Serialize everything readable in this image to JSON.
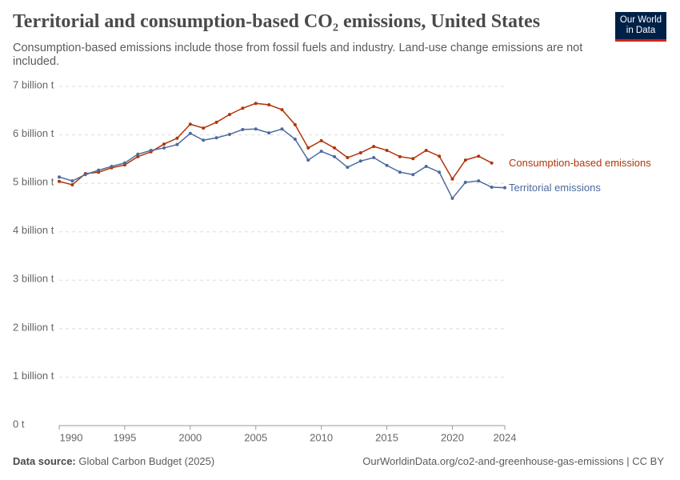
{
  "logo": {
    "line1": "Our World",
    "line2": "in Data"
  },
  "chart_data": {
    "type": "line",
    "title": "Territorial and consumption-based CO₂ emissions, United States",
    "subtitle": "Consumption-based emissions include those from fossil fuels and industry. Land-use change emissions are not included.",
    "x": [
      1990,
      1991,
      1992,
      1993,
      1994,
      1995,
      1996,
      1997,
      1998,
      1999,
      2000,
      2001,
      2002,
      2003,
      2004,
      2005,
      2006,
      2007,
      2008,
      2009,
      2010,
      2011,
      2012,
      2013,
      2014,
      2015,
      2016,
      2017,
      2018,
      2019,
      2020,
      2021,
      2022,
      2023,
      2024
    ],
    "series": [
      {
        "name": "Consumption-based emissions",
        "color": "#b13507",
        "values": [
          5.04,
          4.97,
          5.2,
          5.23,
          5.32,
          5.38,
          5.55,
          5.65,
          5.81,
          5.93,
          6.22,
          6.14,
          6.26,
          6.42,
          6.55,
          6.65,
          6.62,
          6.52,
          6.21,
          5.73,
          5.88,
          5.73,
          5.53,
          5.63,
          5.76,
          5.68,
          5.55,
          5.51,
          5.68,
          5.56,
          5.09,
          5.48,
          5.56,
          5.42,
          null
        ]
      },
      {
        "name": "Territorial emissions",
        "color": "#4c6a9c",
        "values": [
          5.13,
          5.05,
          5.18,
          5.27,
          5.35,
          5.42,
          5.6,
          5.68,
          5.73,
          5.8,
          6.03,
          5.89,
          5.94,
          6.01,
          6.11,
          6.12,
          6.04,
          6.12,
          5.91,
          5.48,
          5.66,
          5.55,
          5.33,
          5.46,
          5.53,
          5.37,
          5.23,
          5.18,
          5.35,
          5.23,
          4.69,
          5.02,
          5.05,
          4.92,
          4.91
        ]
      }
    ],
    "xlim": [
      1990,
      2024
    ],
    "xticks": [
      1990,
      1995,
      2000,
      2005,
      2010,
      2015,
      2020,
      2024
    ],
    "ylim": [
      0,
      7
    ],
    "yticks": [
      {
        "value": 0,
        "label": "0 t"
      },
      {
        "value": 1,
        "label": "1 billion t"
      },
      {
        "value": 2,
        "label": "2 billion t"
      },
      {
        "value": 3,
        "label": "3 billion t"
      },
      {
        "value": 4,
        "label": "4 billion t"
      },
      {
        "value": 5,
        "label": "5 billion t"
      },
      {
        "value": 6,
        "label": "6 billion t"
      },
      {
        "value": 7,
        "label": "7 billion t"
      }
    ],
    "grid": true,
    "source_label": "Data source:",
    "source": "Global Carbon Budget (2025)",
    "url": "OurWorldinData.org/co2-and-greenhouse-gas-emissions | CC BY"
  }
}
